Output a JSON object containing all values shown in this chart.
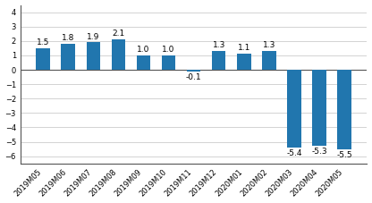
{
  "categories": [
    "2019M05",
    "2019M06",
    "2019M07",
    "2019M08",
    "2019M09",
    "2019M10",
    "2019M11",
    "2019M12",
    "2020M01",
    "2020M02",
    "2020M03",
    "2020M04",
    "2020M05"
  ],
  "values": [
    1.5,
    1.8,
    1.9,
    2.1,
    1.0,
    1.0,
    -0.1,
    1.3,
    1.1,
    1.3,
    -5.4,
    -5.3,
    -5.5
  ],
  "bar_color": "#2176ae",
  "ylim": [
    -6.5,
    4.5
  ],
  "yticks": [
    -6,
    -5,
    -4,
    -3,
    -2,
    -1,
    0,
    1,
    2,
    3,
    4
  ],
  "label_fontsize": 6.5,
  "tick_fontsize": 6.0,
  "bar_width": 0.55,
  "background_color": "#ffffff",
  "grid_color": "#cccccc",
  "spine_color": "#555555"
}
